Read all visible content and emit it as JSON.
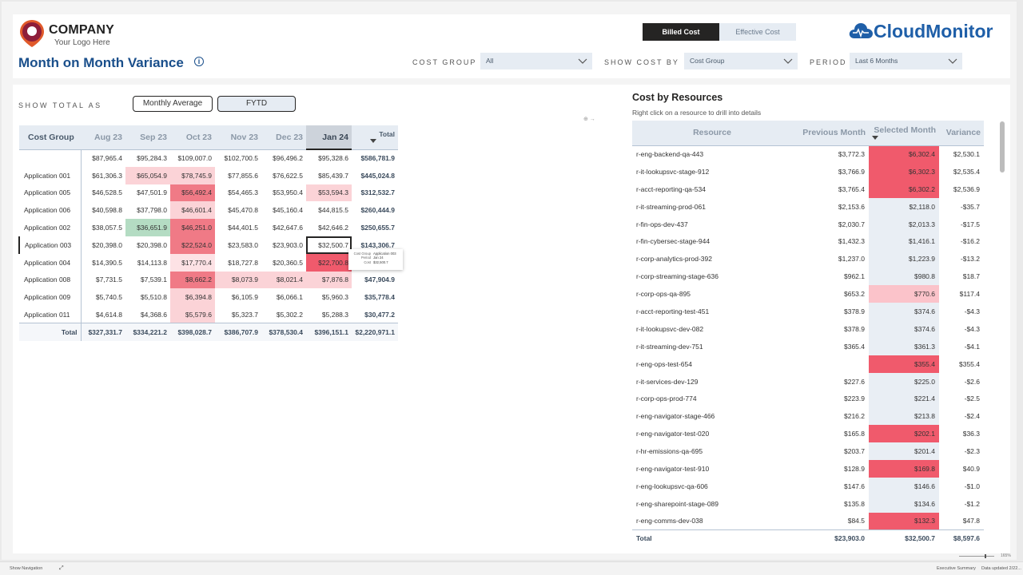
{
  "logo": {
    "company": "COMPANY",
    "tagline": "Your Logo Here"
  },
  "page_title": "Month on Month Variance",
  "info_icon": "i",
  "cost_toggle": {
    "active": "Billed Cost",
    "inactive": "Effective Cost"
  },
  "brand": "CloudMonitor",
  "filters": [
    {
      "label": "COST GROUP",
      "value": "All"
    },
    {
      "label": "SHOW COST BY",
      "value": "Cost Group"
    },
    {
      "label": "PERIOD",
      "value": "Last 6 Months"
    }
  ],
  "show_total": {
    "label": "SHOW TOTAL AS",
    "options": [
      "Monthly Average",
      "FYTD"
    ],
    "selected": "FYTD"
  },
  "matrix": {
    "row_header": "Cost Group",
    "columns": [
      "Aug 23",
      "Sep 23",
      "Oct 23",
      "Nov 23",
      "Dec 23",
      "Jan 24"
    ],
    "selected_column": "Jan 24",
    "total_header": "Total",
    "rows": [
      {
        "label": "",
        "values": [
          "$87,965.4",
          "$95,284.3",
          "$109,007.0",
          "$102,700.5",
          "$96,496.2",
          "$95,328.6"
        ],
        "total": "$586,781.9"
      },
      {
        "label": "Application 001",
        "values": [
          "$61,306.3",
          "$65,054.9",
          "$78,745.9",
          "$77,855.6",
          "$76,622.5",
          "$85,439.7"
        ],
        "total": "$445,024.8"
      },
      {
        "label": "Application 005",
        "values": [
          "$46,528.5",
          "$47,501.9",
          "$56,492.4",
          "$54,465.3",
          "$53,950.4",
          "$53,594.3"
        ],
        "total": "$312,532.7"
      },
      {
        "label": "Application 006",
        "values": [
          "$40,598.8",
          "$37,798.0",
          "$46,601.4",
          "$45,470.8",
          "$45,160.4",
          "$44,815.5"
        ],
        "total": "$260,444.9"
      },
      {
        "label": "Application 002",
        "values": [
          "$38,057.5",
          "$36,651.9",
          "$46,251.0",
          "$44,401.5",
          "$42,647.6",
          "$42,646.2"
        ],
        "total": "$250,655.7"
      },
      {
        "label": "Application 003",
        "values": [
          "$20,398.0",
          "$20,398.0",
          "$22,524.0",
          "$23,583.0",
          "$23,903.0",
          "$32,500.7"
        ],
        "total": "$143,306.7"
      },
      {
        "label": "Application 004",
        "values": [
          "$14,390.5",
          "$14,113.8",
          "$17,770.4",
          "$18,727.8",
          "$20,360.5",
          "$22,700.8"
        ],
        "total": "$108,063.8"
      },
      {
        "label": "Application 008",
        "values": [
          "$7,731.5",
          "$7,539.1",
          "$8,662.2",
          "$8,073.9",
          "$8,021.4",
          "$7,876.8"
        ],
        "total": "$47,904.9"
      },
      {
        "label": "Application 009",
        "values": [
          "$5,740.5",
          "$5,510.8",
          "$6,394.8",
          "$6,105.9",
          "$6,066.1",
          "$5,960.3"
        ],
        "total": "$35,778.4"
      },
      {
        "label": "Application 011",
        "values": [
          "$4,614.8",
          "$4,368.6",
          "$5,579.6",
          "$5,323.7",
          "$5,302.2",
          "$5,288.3"
        ],
        "total": "$30,477.2"
      }
    ],
    "total_row": {
      "label": "Total",
      "values": [
        "$327,331.7",
        "$334,221.2",
        "$398,028.7",
        "$386,707.9",
        "$378,530.4",
        "$396,151.1"
      ],
      "total": "$2,220,971.1"
    },
    "colors": {
      "r1_1": "#fbd3d7",
      "r1_2": "#fbd3d7",
      "r2_2": "#f07a86",
      "r2_5": "#fbd3d7",
      "r3_2": "#fbd3d7",
      "r4_1": "#b4dcc3",
      "r4_2": "#f07a86",
      "r5_2": "#f07a86",
      "r6_2": "#fde2e5",
      "r6_5": "#f05a6c",
      "r7_2": "#f07a86",
      "r7_3": "#fbd3d7",
      "r7_4": "#fbd3d7",
      "r7_5": "#fbd3d7",
      "r8_2": "#fbd3d7",
      "r9_2": "#fbd3d7",
      "r10_2": "#f05a6c"
    }
  },
  "tooltip": [
    {
      "key": "Cost Group",
      "value": "Application 003"
    },
    {
      "key": "Period",
      "value": "Jan 24"
    },
    {
      "key": "Cost",
      "value": "$32,500.7"
    }
  ],
  "mini_ctrl": "⊕ →",
  "resources": {
    "title": "Cost by Resources",
    "subtitle": "Right click on a resource to drill into details",
    "columns": [
      "Resource",
      "Previous Month",
      "Selected Month",
      "Variance"
    ],
    "rows": [
      {
        "name": "r-eng-backend-qa-443",
        "prev": "$3,772.3",
        "sel": "$6,302.4",
        "var": "$2,530.1",
        "hl": "#f05a6c"
      },
      {
        "name": "r-it-lookupsvc-stage-912",
        "prev": "$3,766.9",
        "sel": "$6,302.3",
        "var": "$2,535.4",
        "hl": "#f05a6c"
      },
      {
        "name": "r-acct-reporting-qa-534",
        "prev": "$3,765.4",
        "sel": "$6,302.2",
        "var": "$2,536.9",
        "hl": "#f05a6c"
      },
      {
        "name": "r-it-streaming-prod-061",
        "prev": "$2,153.6",
        "sel": "$2,118.0",
        "var": "-$35.7",
        "hl": ""
      },
      {
        "name": "r-fin-ops-dev-437",
        "prev": "$2,030.7",
        "sel": "$2,013.3",
        "var": "-$17.5",
        "hl": ""
      },
      {
        "name": "r-fin-cybersec-stage-944",
        "prev": "$1,432.3",
        "sel": "$1,416.1",
        "var": "-$16.2",
        "hl": ""
      },
      {
        "name": "r-corp-analytics-prod-392",
        "prev": "$1,237.0",
        "sel": "$1,223.9",
        "var": "-$13.2",
        "hl": ""
      },
      {
        "name": "r-corp-streaming-stage-636",
        "prev": "$962.1",
        "sel": "$980.8",
        "var": "$18.7",
        "hl": ""
      },
      {
        "name": "r-corp-ops-qa-895",
        "prev": "$653.2",
        "sel": "$770.6",
        "var": "$117.4",
        "hl": "#fbc3ca"
      },
      {
        "name": "r-acct-reporting-test-451",
        "prev": "$378.9",
        "sel": "$374.6",
        "var": "-$4.3",
        "hl": ""
      },
      {
        "name": "r-it-lookupsvc-dev-082",
        "prev": "$378.9",
        "sel": "$374.6",
        "var": "-$4.3",
        "hl": ""
      },
      {
        "name": "r-it-streaming-dev-751",
        "prev": "$365.4",
        "sel": "$361.3",
        "var": "-$4.1",
        "hl": ""
      },
      {
        "name": "r-eng-ops-test-654",
        "prev": "",
        "sel": "$355.4",
        "var": "$355.4",
        "hl": "#f05a6c"
      },
      {
        "name": "r-it-services-dev-129",
        "prev": "$227.6",
        "sel": "$225.0",
        "var": "-$2.6",
        "hl": ""
      },
      {
        "name": "r-corp-ops-prod-774",
        "prev": "$223.9",
        "sel": "$221.4",
        "var": "-$2.5",
        "hl": ""
      },
      {
        "name": "r-eng-navigator-stage-466",
        "prev": "$216.2",
        "sel": "$213.8",
        "var": "-$2.4",
        "hl": ""
      },
      {
        "name": "r-eng-navigator-test-020",
        "prev": "$165.8",
        "sel": "$202.1",
        "var": "$36.3",
        "hl": "#f05a6c"
      },
      {
        "name": "r-hr-emissions-qa-695",
        "prev": "$203.7",
        "sel": "$201.4",
        "var": "-$2.3",
        "hl": ""
      },
      {
        "name": "r-eng-navigator-test-910",
        "prev": "$128.9",
        "sel": "$169.8",
        "var": "$40.9",
        "hl": "#f05a6c"
      },
      {
        "name": "r-eng-lookupsvc-qa-606",
        "prev": "$147.6",
        "sel": "$146.6",
        "var": "-$1.0",
        "hl": ""
      },
      {
        "name": "r-eng-sharepoint-stage-089",
        "prev": "$135.8",
        "sel": "$134.6",
        "var": "-$1.2",
        "hl": ""
      },
      {
        "name": "r-eng-comms-dev-038",
        "prev": "$84.5",
        "sel": "$132.3",
        "var": "$47.8",
        "hl": "#f05a6c"
      }
    ],
    "total": {
      "label": "Total",
      "prev": "$23,903.0",
      "sel": "$32,500.7",
      "var": "$8,597.6"
    }
  },
  "statusbar": {
    "show_navigation": "Show Navigation",
    "page": "Executive Summary",
    "updated": "Data updated 2/22...",
    "zoom": "165%"
  }
}
